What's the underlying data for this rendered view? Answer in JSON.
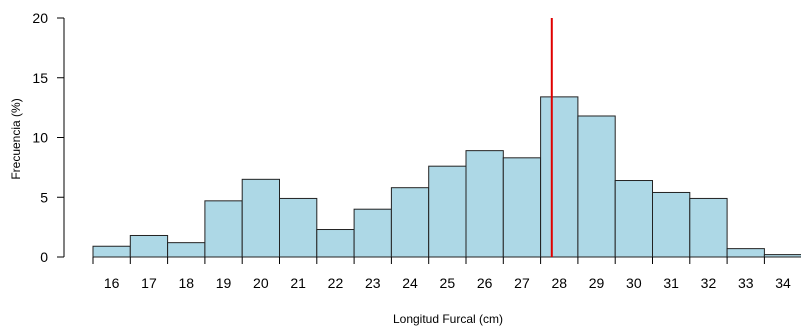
{
  "chart_data": {
    "type": "bar",
    "title": "",
    "xlabel": "Longitud Furcal (cm)",
    "ylabel": "Frecuencia (%)",
    "ylim": [
      0,
      20
    ],
    "yticks": [
      0,
      5,
      10,
      15,
      20
    ],
    "categories": [
      "16",
      "17",
      "18",
      "19",
      "20",
      "21",
      "22",
      "23",
      "24",
      "25",
      "26",
      "27",
      "28",
      "29",
      "30",
      "31",
      "32",
      "33",
      "34"
    ],
    "values": [
      0.9,
      1.8,
      1.2,
      4.7,
      6.5,
      4.9,
      2.3,
      4.0,
      5.8,
      7.6,
      8.9,
      8.3,
      13.4,
      11.8,
      6.4,
      5.4,
      4.9,
      0.7,
      0.2
    ],
    "reference_line": {
      "x": 28.3,
      "color": "#e00000"
    },
    "colors": {
      "bar_fill": "#add8e6",
      "bar_stroke": "#222222"
    },
    "grid": false,
    "legend": "none"
  }
}
